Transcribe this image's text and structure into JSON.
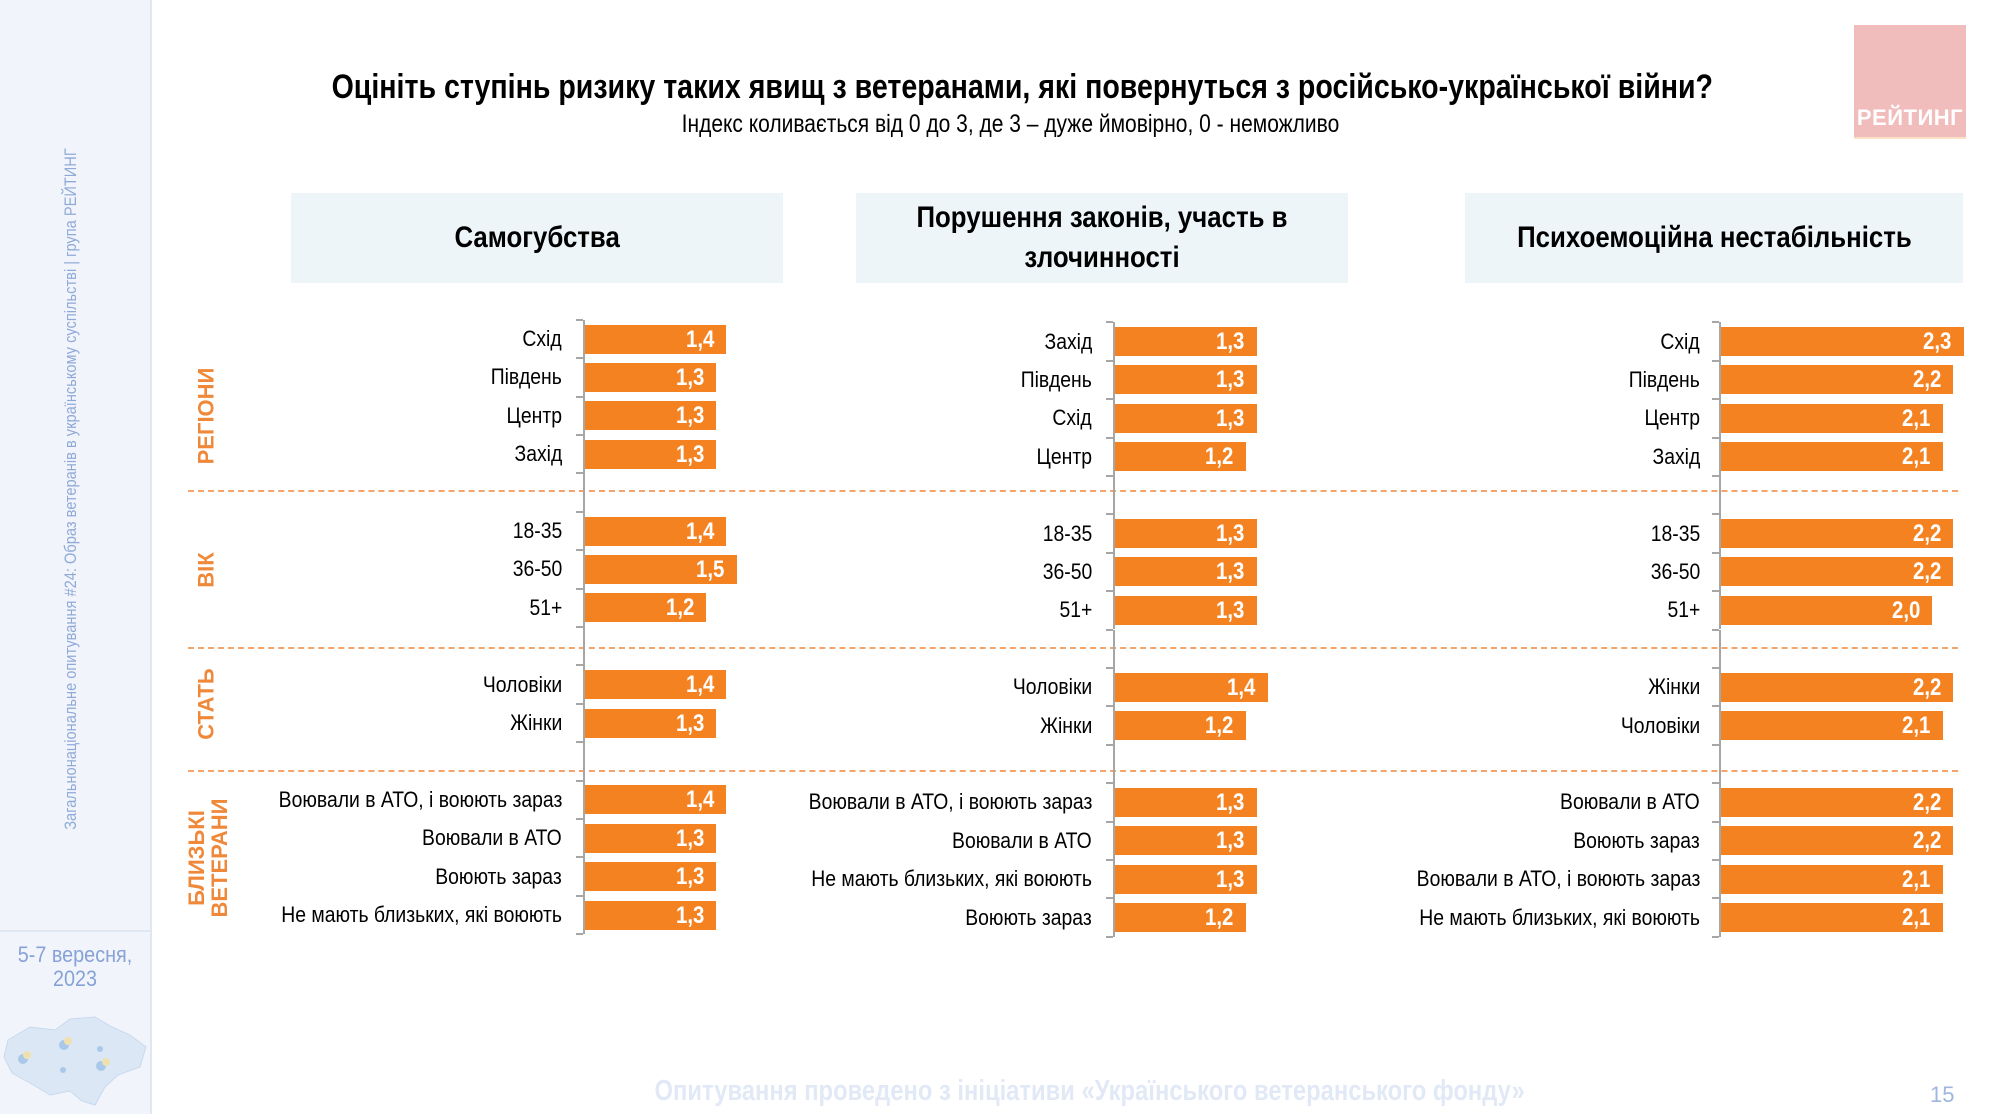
{
  "sidebar": {
    "vertical_text": "Загальнонаціональне опитування #24: Образ ветеранів в українському суспільстві | група РЕЙТИНГ",
    "date_line1": "5-7 вересня,",
    "date_line2": "2023"
  },
  "logo": {
    "text": "РЕЙТИНГ",
    "color": "#f0bcbc"
  },
  "header": {
    "title": "Оцініть ступінь ризику таких явищ з ветеранами, які повернуться з російсько-української війни?",
    "subtitle": "Індекс коливається від 0 до 3, де 3 – дуже ймовірно, 0 - неможливо"
  },
  "group_labels": {
    "regions": "РЕГІОНИ",
    "age": "ВІК",
    "gender": "СТАТЬ",
    "relatives_line1": "БЛИЗЬКІ",
    "relatives_line2": "ВЕТЕРАНИ"
  },
  "footer": {
    "text": "Опитування проведено з ініціативи «Українського ветеранського фонду»",
    "page_number": "15"
  },
  "colors": {
    "bar": "#f58220",
    "group_label": "#f0883a",
    "header_bg": "#edf5f9"
  },
  "chart_data": [
    {
      "type": "bar",
      "orientation": "horizontal",
      "title": "Самогубства",
      "xlim": [
        0,
        3
      ],
      "groups": [
        {
          "name": "РЕГІОНИ",
          "categories": [
            "Схід",
            "Південь",
            "Центр",
            "Захід"
          ],
          "values": [
            1.4,
            1.3,
            1.3,
            1.3
          ],
          "labels": [
            "1,4",
            "1,3",
            "1,3",
            "1,3"
          ]
        },
        {
          "name": "ВІК",
          "categories": [
            "18-35",
            "36-50",
            "51+"
          ],
          "values": [
            1.4,
            1.5,
            1.2
          ],
          "labels": [
            "1,4",
            "1,5",
            "1,2"
          ]
        },
        {
          "name": "СТАТЬ",
          "categories": [
            "Чоловіки",
            "Жінки"
          ],
          "values": [
            1.4,
            1.3
          ],
          "labels": [
            "1,4",
            "1,3"
          ]
        },
        {
          "name": "БЛИЗЬКІ ВЕТЕРАНИ",
          "categories": [
            "Воювали в АТО, і воюють зараз",
            "Воювали в АТО",
            "Воюють зараз",
            "Не мають близьких, які воюють"
          ],
          "values": [
            1.4,
            1.3,
            1.3,
            1.3
          ],
          "labels": [
            "1,4",
            "1,3",
            "1,3",
            "1,3"
          ]
        }
      ]
    },
    {
      "type": "bar",
      "orientation": "horizontal",
      "title": "Порушення законів, участь в злочинності",
      "xlim": [
        0,
        3
      ],
      "groups": [
        {
          "name": "РЕГІОНИ",
          "categories": [
            "Захід",
            "Південь",
            "Схід",
            "Центр"
          ],
          "values": [
            1.3,
            1.3,
            1.3,
            1.2
          ],
          "labels": [
            "1,3",
            "1,3",
            "1,3",
            "1,2"
          ]
        },
        {
          "name": "ВІК",
          "categories": [
            "18-35",
            "36-50",
            "51+"
          ],
          "values": [
            1.3,
            1.3,
            1.3
          ],
          "labels": [
            "1,3",
            "1,3",
            "1,3"
          ]
        },
        {
          "name": "СТАТЬ",
          "categories": [
            "Чоловіки",
            "Жінки"
          ],
          "values": [
            1.4,
            1.2
          ],
          "labels": [
            "1,4",
            "1,2"
          ]
        },
        {
          "name": "БЛИЗЬКІ ВЕТЕРАНИ",
          "categories": [
            "Воювали в АТО, і воюють зараз",
            "Воювали в АТО",
            "Не мають близьких, які воюють",
            "Воюють зараз"
          ],
          "values": [
            1.3,
            1.3,
            1.3,
            1.2
          ],
          "labels": [
            "1,3",
            "1,3",
            "1,3",
            "1,2"
          ]
        }
      ]
    },
    {
      "type": "bar",
      "orientation": "horizontal",
      "title": "Психоемоційна нестабільність",
      "xlim": [
        0,
        3
      ],
      "groups": [
        {
          "name": "РЕГІОНИ",
          "categories": [
            "Схід",
            "Південь",
            "Центр",
            "Захід"
          ],
          "values": [
            2.3,
            2.2,
            2.1,
            2.1
          ],
          "labels": [
            "2,3",
            "2,2",
            "2,1",
            "2,1"
          ]
        },
        {
          "name": "ВІК",
          "categories": [
            "18-35",
            "36-50",
            "51+"
          ],
          "values": [
            2.2,
            2.2,
            2.0
          ],
          "labels": [
            "2,2",
            "2,2",
            "2,0"
          ]
        },
        {
          "name": "СТАТЬ",
          "categories": [
            "Жінки",
            "Чоловіки"
          ],
          "values": [
            2.2,
            2.1
          ],
          "labels": [
            "2,2",
            "2,1"
          ]
        },
        {
          "name": "БЛИЗЬКІ ВЕТЕРАНИ",
          "categories": [
            "Воювали в АТО",
            "Воюють зараз",
            "Воювали в АТО, і воюють зараз",
            "Не мають близьких, які воюють"
          ],
          "values": [
            2.2,
            2.2,
            2.1,
            2.1
          ],
          "labels": [
            "2,2",
            "2,2",
            "2,1",
            "2,1"
          ]
        }
      ]
    }
  ]
}
